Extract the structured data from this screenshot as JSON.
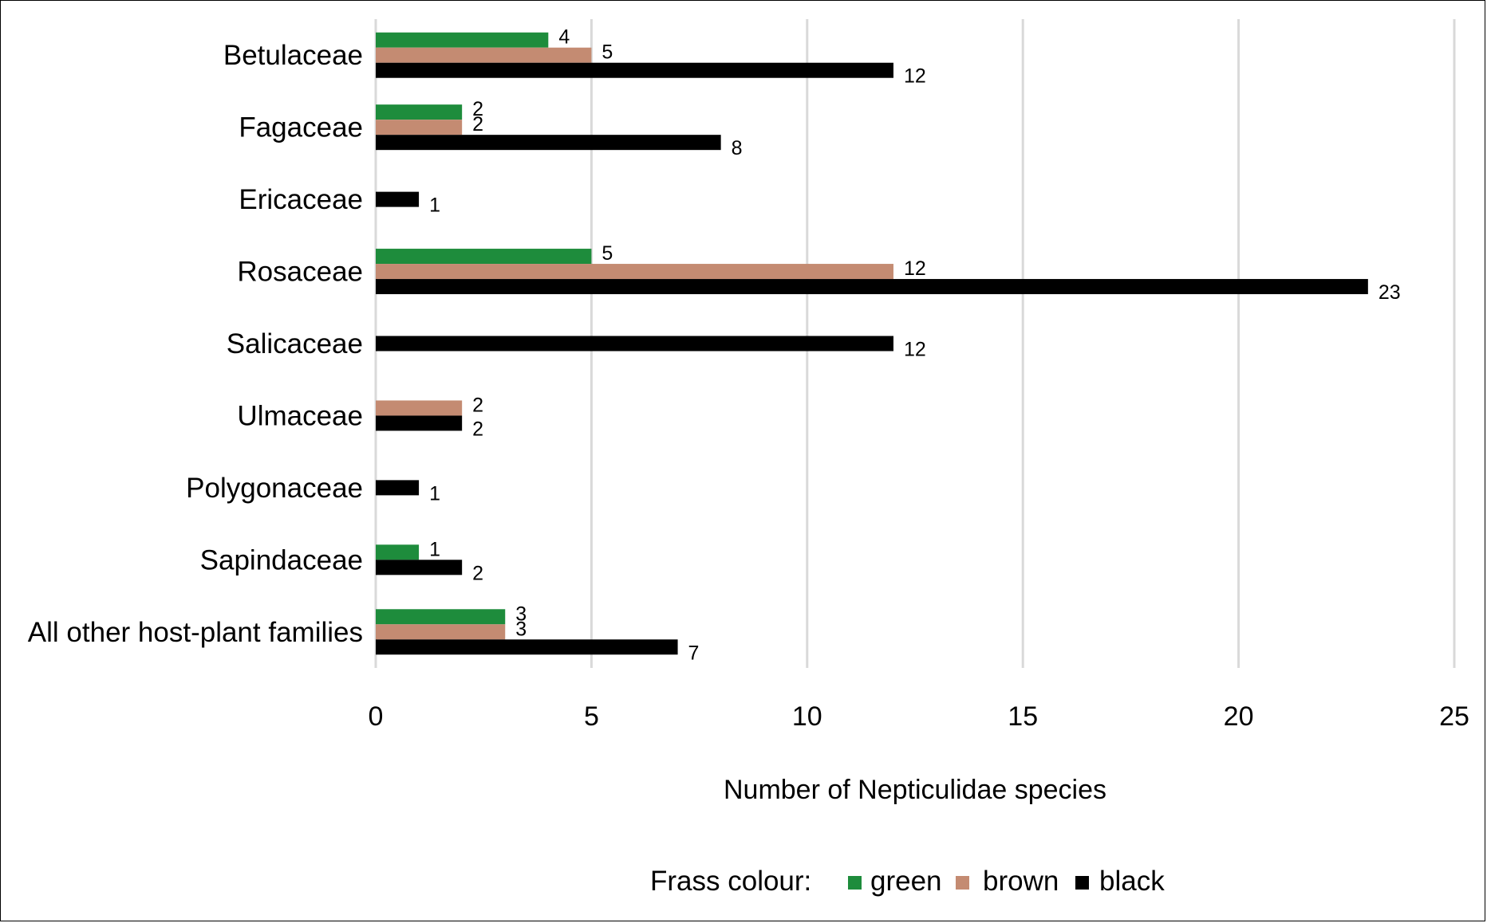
{
  "chart_data": {
    "type": "bar",
    "orientation": "horizontal",
    "categories": [
      "Betulaceae",
      "Fagaceae",
      "Ericaceae",
      "Rosaceae",
      "Salicaceae",
      "Ulmaceae",
      "Polygonaceae",
      "Sapindaceae",
      "All other host-plant families"
    ],
    "series": [
      {
        "name": "green",
        "color": "#1e8c3c",
        "values": [
          4,
          2,
          null,
          5,
          null,
          null,
          null,
          1,
          3
        ]
      },
      {
        "name": "brown",
        "color": "#c48b72",
        "values": [
          5,
          2,
          null,
          12,
          null,
          2,
          null,
          null,
          3
        ]
      },
      {
        "name": "black",
        "color": "#000000",
        "values": [
          12,
          8,
          1,
          23,
          12,
          2,
          1,
          2,
          7
        ]
      }
    ],
    "xlabel": "Number of Nepticulidae species",
    "xlim": [
      0,
      25
    ],
    "xticks": [
      0,
      5,
      10,
      15,
      20,
      25
    ],
    "grid": "vertical",
    "legend": {
      "title": "Frass colour:",
      "placement": "bottom",
      "entries": [
        "green",
        "brown",
        "black"
      ]
    }
  }
}
